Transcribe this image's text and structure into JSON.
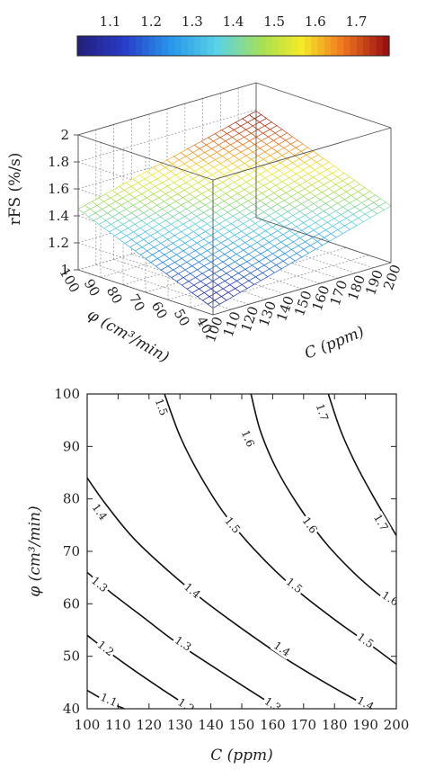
{
  "chart_data": [
    {
      "type": "surface",
      "colorbar": {
        "ticks": [
          "1.1",
          "1.2",
          "1.3",
          "1.4",
          "1.5",
          "1.6",
          "1.7"
        ],
        "range": [
          1.02,
          1.78
        ],
        "colormap": "jet"
      },
      "x_axis": {
        "label": "C (ppm)",
        "ticks": [
          100,
          110,
          120,
          130,
          140,
          150,
          160,
          170,
          180,
          190,
          200
        ]
      },
      "y_axis": {
        "label": "φ (cm³/min)",
        "ticks": [
          40,
          50,
          60,
          70,
          80,
          90,
          100
        ]
      },
      "z_axis": {
        "label": "rFS (%/s)",
        "ticks": [
          "1",
          "1.2",
          "1.4",
          "1.6",
          "1.8",
          "2"
        ],
        "range": [
          1,
          2
        ]
      },
      "corner_values": [
        {
          "C": 100,
          "phi": 40,
          "rFS": 1.05
        },
        {
          "C": 200,
          "phi": 40,
          "rFS": 1.42
        },
        {
          "C": 100,
          "phi": 100,
          "rFS": 1.45
        },
        {
          "C": 200,
          "phi": 100,
          "rFS": 1.83
        }
      ],
      "grid": true
    },
    {
      "type": "contour",
      "x_axis": {
        "label": "C (ppm)",
        "ticks": [
          100,
          110,
          120,
          130,
          140,
          150,
          160,
          170,
          180,
          190,
          200
        ],
        "range": [
          100,
          200
        ]
      },
      "y_axis": {
        "label": "φ (cm³/min)",
        "ticks": [
          40,
          50,
          60,
          70,
          80,
          90,
          100
        ],
        "range": [
          40,
          100
        ]
      },
      "levels": [
        {
          "value": "1.1",
          "points": [
            [
              100,
              43.5
            ],
            [
              106,
              41.5
            ],
            [
              112,
              40
            ]
          ],
          "labels": [
            [
              107,
              41.7
            ]
          ]
        },
        {
          "value": "1.2",
          "points": [
            [
              100,
              54
            ],
            [
              107,
              50.8
            ],
            [
              115,
              47.4
            ],
            [
              125,
              43.4
            ],
            [
              130,
              41.5
            ],
            [
              134,
              40
            ]
          ],
          "labels": [
            [
              106,
              51.5
            ],
            [
              132,
              40.6
            ]
          ]
        },
        {
          "value": "1.3",
          "points": [
            [
              100,
              66
            ],
            [
              108,
              62
            ],
            [
              118,
              57.5
            ],
            [
              128,
              53
            ],
            [
              140,
              48.3
            ],
            [
              150,
              44.5
            ],
            [
              162,
              40
            ]
          ],
          "labels": [
            [
              104,
              63.7
            ],
            [
              131,
              52.4
            ],
            [
              160,
              40.8
            ]
          ]
        },
        {
          "value": "1.4",
          "points": [
            [
              100,
              84
            ],
            [
              106,
              79
            ],
            [
              115,
              72.5
            ],
            [
              126,
              66.4
            ],
            [
              138,
              60.5
            ],
            [
              150,
              55.3
            ],
            [
              163,
              50
            ],
            [
              176,
              45.3
            ],
            [
              188,
              41.3
            ],
            [
              192,
              40
            ]
          ],
          "labels": [
            [
              104,
              77.5
            ],
            [
              134,
              62.5
            ],
            [
              163,
              51.4
            ],
            [
              190,
              41
            ]
          ]
        },
        {
          "value": "1.5",
          "points": [
            [
              125,
              100
            ],
            [
              130,
              92
            ],
            [
              136,
              85
            ],
            [
              144,
              77.5
            ],
            [
              154,
              70.4
            ],
            [
              166,
              63.5
            ],
            [
              180,
              57
            ],
            [
              192,
              52
            ],
            [
              200,
              48.5
            ]
          ],
          "labels": [
            [
              124,
              97.5
            ],
            [
              147,
              75
            ],
            [
              167,
              63.5
            ],
            [
              190,
              53
            ]
          ]
        },
        {
          "value": "1.6",
          "points": [
            [
              153,
              100
            ],
            [
              156,
              93
            ],
            [
              161,
              86
            ],
            [
              168,
              79
            ],
            [
              177,
              71.7
            ],
            [
              187,
              65.5
            ],
            [
              196,
              61
            ],
            [
              200,
              59.5
            ]
          ],
          "labels": [
            [
              152,
              91.5
            ],
            [
              172,
              75
            ],
            [
              198,
              61
            ]
          ]
        },
        {
          "value": "1.7",
          "points": [
            [
              178,
              100
            ],
            [
              182,
              93
            ],
            [
              187,
              86.5
            ],
            [
              193,
              80
            ],
            [
              200,
              73
            ]
          ],
          "labels": [
            [
              176,
              96.5
            ],
            [
              195,
              75.5
            ]
          ]
        }
      ]
    }
  ]
}
